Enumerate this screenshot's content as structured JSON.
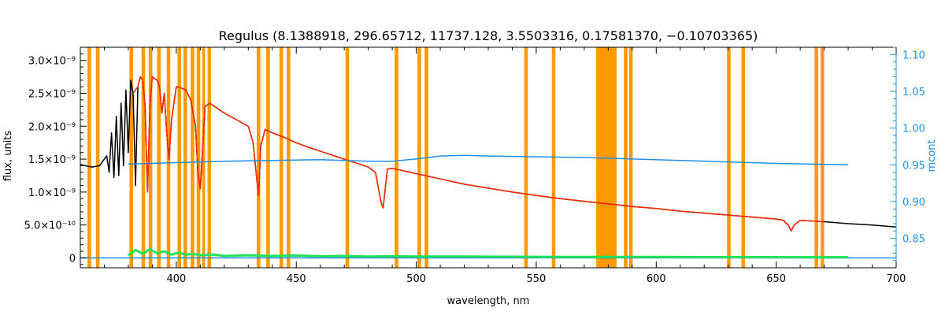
{
  "chart_data": {
    "type": "line",
    "title": "Regulus    (8.1388918, 296.65712, 11737.128, 3.5503316, 0.17581370, −0.10703365)",
    "xlabel": "wavelength, nm",
    "ylabel": "flux, units",
    "y2label": "mcont",
    "xlim": [
      360,
      700
    ],
    "ylim": [
      -1.5e-10,
      3.2e-09
    ],
    "y2lim": [
      0.81,
      1.11
    ],
    "x_ticks": [
      400,
      450,
      500,
      550,
      600,
      650,
      700
    ],
    "x_tick_labels": [
      "400",
      "450",
      "500",
      "550",
      "600",
      "650",
      "700"
    ],
    "y_ticks": [
      0,
      5e-10,
      1e-09,
      1.5e-09,
      2e-09,
      2.5e-09,
      3e-09
    ],
    "y_tick_labels": [
      "0",
      "5.0×10⁻¹⁰",
      "1.0×10⁻⁹",
      "1.5×10⁻⁹",
      "2.0×10⁻⁹",
      "2.5×10⁻⁹",
      "3.0×10⁻⁹"
    ],
    "y2_ticks": [
      0.85,
      0.9,
      0.95,
      1.0,
      1.05,
      1.1
    ],
    "y2_tick_labels": [
      "0.85",
      "0.90",
      "0.95",
      "1.00",
      "1.05",
      "1.10"
    ],
    "masked_regions": [
      [
        363.0,
        364.5
      ],
      [
        366.5,
        368.0
      ],
      [
        380.5,
        382.0
      ],
      [
        385.5,
        387.0
      ],
      [
        388.5,
        390.0
      ],
      [
        392.0,
        393.5
      ],
      [
        396.0,
        397.5
      ],
      [
        400.5,
        402.0
      ],
      [
        403.0,
        404.5
      ],
      [
        406.0,
        407.5
      ],
      [
        408.5,
        410.0
      ],
      [
        410.8,
        412.0
      ],
      [
        413.0,
        414.5
      ],
      [
        433.5,
        435.0
      ],
      [
        437.5,
        439.0
      ],
      [
        443.0,
        444.5
      ],
      [
        446.0,
        447.5
      ],
      [
        470.5,
        472.0
      ],
      [
        491.0,
        492.5
      ],
      [
        500.5,
        502.0
      ],
      [
        503.5,
        505.0
      ],
      [
        545.0,
        546.5
      ],
      [
        556.5,
        558.0
      ],
      [
        575.0,
        583.5
      ],
      [
        586.5,
        588.0
      ],
      [
        588.7,
        590.2
      ],
      [
        629.5,
        631.0
      ],
      [
        635.5,
        637.0
      ],
      [
        666.0,
        667.5
      ],
      [
        668.5,
        670.0
      ]
    ],
    "series": [
      {
        "color": "#000000",
        "axis": "left",
        "x": [
          360,
          362,
          365,
          368,
          371,
          372,
          373,
          374,
          375,
          376,
          377,
          378,
          379,
          380,
          381,
          382,
          383,
          384,
          385,
          386,
          387,
          388,
          389,
          390,
          391,
          392,
          393,
          394,
          395,
          396,
          397,
          398,
          400,
          402,
          404,
          406,
          408,
          409,
          410,
          411,
          412,
          414,
          416,
          418,
          420,
          425,
          430,
          432,
          433.5,
          434.3,
          435.2,
          437,
          440,
          445,
          450,
          455,
          460,
          465,
          470,
          475,
          480,
          483,
          484.5,
          485.5,
          486.2,
          486.9,
          488,
          490,
          495,
          500,
          510,
          520,
          530,
          540,
          550,
          560,
          570,
          580,
          590,
          600,
          610,
          620,
          630,
          640,
          650,
          653,
          655,
          656.3,
          657.5,
          660,
          670,
          680,
          690,
          700
        ],
        "y": [
          1.42e-09,
          1.4e-09,
          1.38e-09,
          1.4e-09,
          1.55e-09,
          1.3e-09,
          1.9e-09,
          1.22e-09,
          2.15e-09,
          1.25e-09,
          2.35e-09,
          1.4e-09,
          2.55e-09,
          1.6e-09,
          2.7e-09,
          2.5e-09,
          1.1e-09,
          2.6e-09,
          2.75e-09,
          2.7e-09,
          2.3e-09,
          1e-09,
          2.3e-09,
          2.75e-09,
          2.72e-09,
          2.7e-09,
          2.6e-09,
          2.2e-09,
          2.5e-09,
          1.9e-09,
          1.5e-09,
          2.1e-09,
          2.6e-09,
          2.58e-09,
          2.55e-09,
          2.4e-09,
          2e-09,
          1.3e-09,
          1.05e-09,
          1.7e-09,
          2.3e-09,
          2.35e-09,
          2.3e-09,
          2.25e-09,
          2.2e-09,
          2.1e-09,
          2e-09,
          1.75e-09,
          1.2e-09,
          9.5e-10,
          1.7e-09,
          1.95e-09,
          1.9e-09,
          1.83e-09,
          1.75e-09,
          1.68e-09,
          1.62e-09,
          1.56e-09,
          1.5e-09,
          1.44e-09,
          1.38e-09,
          1.3e-09,
          1e-09,
          8.2e-10,
          7.6e-10,
          1e-09,
          1.35e-09,
          1.36e-09,
          1.32e-09,
          1.28e-09,
          1.2e-09,
          1.12e-09,
          1.06e-09,
          1e-09,
          9.5e-10,
          9e-10,
          8.6e-10,
          8.2e-10,
          7.8e-10,
          7.5e-10,
          7.1e-10,
          6.8e-10,
          6.5e-10,
          6.2e-10,
          5.9e-10,
          5.7e-10,
          5e-10,
          4.1e-10,
          5e-10,
          5.7e-10,
          5.5e-10,
          5.2e-10,
          5e-10,
          4.7e-10
        ]
      },
      {
        "color": "#ff2a00",
        "axis": "left",
        "x": [
          382,
          384,
          385,
          386,
          387,
          388,
          389,
          390,
          391,
          392,
          393,
          394,
          395,
          396,
          397,
          398,
          400,
          402,
          404,
          406,
          408,
          409,
          410,
          411,
          412,
          414,
          416,
          418,
          420,
          425,
          430,
          432,
          433.5,
          434.3,
          435.2,
          437,
          440,
          445,
          450,
          455,
          460,
          465,
          470,
          475,
          480,
          483,
          484.5,
          485.5,
          486.2,
          486.9,
          488,
          490,
          495,
          500,
          510,
          520,
          530,
          540,
          550,
          560,
          570,
          580,
          590,
          600,
          610,
          620,
          630,
          640,
          650,
          653,
          655,
          656.3,
          657.5,
          660,
          670
        ],
        "y": [
          2.5e-09,
          2.6e-09,
          2.75e-09,
          2.7e-09,
          2.3e-09,
          1e-09,
          2.3e-09,
          2.75e-09,
          2.72e-09,
          2.7e-09,
          2.6e-09,
          2.2e-09,
          2.5e-09,
          1.9e-09,
          1.5e-09,
          2.1e-09,
          2.6e-09,
          2.58e-09,
          2.55e-09,
          2.4e-09,
          2e-09,
          1.3e-09,
          1.05e-09,
          1.7e-09,
          2.3e-09,
          2.35e-09,
          2.3e-09,
          2.25e-09,
          2.2e-09,
          2.1e-09,
          2e-09,
          1.75e-09,
          1.2e-09,
          9.5e-10,
          1.7e-09,
          1.95e-09,
          1.9e-09,
          1.83e-09,
          1.75e-09,
          1.68e-09,
          1.62e-09,
          1.56e-09,
          1.5e-09,
          1.44e-09,
          1.38e-09,
          1.3e-09,
          1e-09,
          8.2e-10,
          7.6e-10,
          1e-09,
          1.35e-09,
          1.36e-09,
          1.32e-09,
          1.28e-09,
          1.2e-09,
          1.12e-09,
          1.06e-09,
          1e-09,
          9.5e-10,
          9e-10,
          8.6e-10,
          8.2e-10,
          7.8e-10,
          7.5e-10,
          7.1e-10,
          6.8e-10,
          6.5e-10,
          6.2e-10,
          5.9e-10,
          5.7e-10,
          5e-10,
          4.1e-10,
          5e-10,
          5.7e-10,
          5.5e-10
        ]
      },
      {
        "color": "#1f8fe6",
        "axis": "right",
        "x": [
          380,
          400,
          420,
          440,
          460,
          480,
          490,
          500,
          510,
          520,
          530,
          550,
          570,
          590,
          610,
          630,
          650,
          665,
          680
        ],
        "y": [
          0.951,
          0.953,
          0.955,
          0.956,
          0.957,
          0.955,
          0.955,
          0.958,
          0.962,
          0.963,
          0.962,
          0.961,
          0.96,
          0.958,
          0.956,
          0.954,
          0.952,
          0.951,
          0.95
        ]
      },
      {
        "color": "#1f8fe6",
        "axis": "left",
        "x": [
          360,
          700
        ],
        "y": [
          0,
          0
        ]
      },
      {
        "color": "#22e05a",
        "axis": "left",
        "x": [
          380,
          383,
          386,
          389,
          392,
          395,
          398,
          401,
          404,
          407,
          410,
          415,
          420,
          430,
          440,
          450,
          460,
          470,
          480,
          490,
          500,
          520,
          540,
          560,
          580,
          600,
          620,
          640,
          660,
          680
        ],
        "y": [
          4e-11,
          1.2e-10,
          6e-11,
          1.3e-10,
          7e-11,
          1e-10,
          5e-11,
          8e-11,
          5e-11,
          6e-11,
          4e-11,
          5e-11,
          3e-11,
          4e-11,
          3e-11,
          3.5e-11,
          2.5e-11,
          3e-11,
          2e-11,
          2.5e-11,
          2e-11,
          2e-11,
          1.8e-11,
          1.5e-11,
          1.5e-11,
          1.5e-11,
          1.2e-11,
          1.2e-11,
          1e-11,
          1e-11
        ]
      }
    ]
  }
}
